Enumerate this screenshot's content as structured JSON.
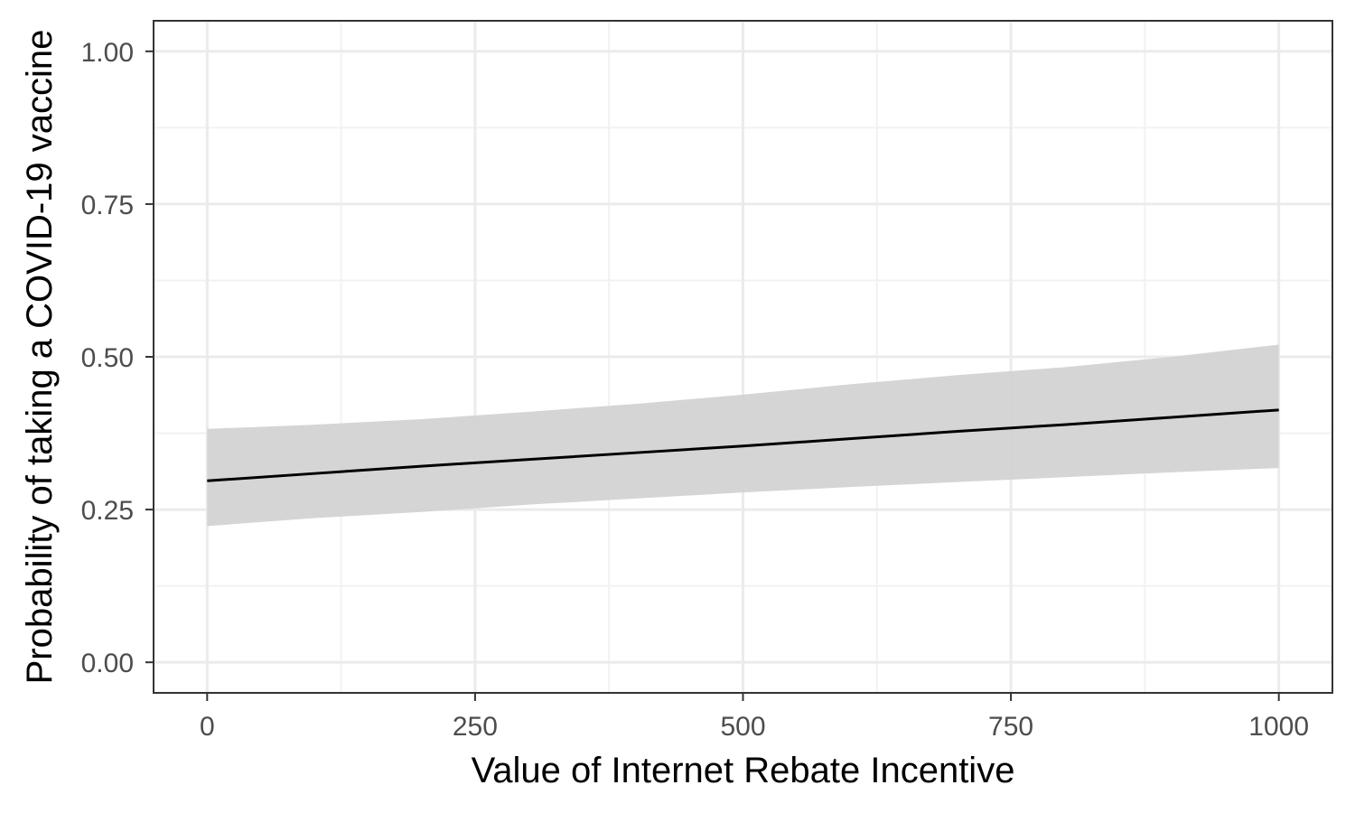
{
  "chart_data": {
    "type": "line",
    "title": "",
    "xlabel": "Value of Internet Rebate Incentive",
    "ylabel": "Probability of taking a COVID-19 vaccine",
    "xlim": [
      -50,
      1050
    ],
    "ylim": [
      -0.05,
      1.05
    ],
    "x_ticks": [
      0,
      250,
      500,
      750,
      1000
    ],
    "x_tick_labels": [
      "0",
      "250",
      "500",
      "750",
      "1000"
    ],
    "y_ticks": [
      0,
      0.25,
      0.5,
      0.75,
      1.0
    ],
    "y_tick_labels": [
      "0.00",
      "0.25",
      "0.50",
      "0.75",
      "1.00"
    ],
    "grid": true,
    "series": [
      {
        "x": [
          0,
          100,
          200,
          300,
          400,
          500,
          600,
          700,
          800,
          900,
          1000
        ],
        "fit": [
          0.297,
          0.309,
          0.321,
          0.332,
          0.343,
          0.354,
          0.366,
          0.378,
          0.389,
          0.401,
          0.413
        ],
        "lower": [
          0.223,
          0.236,
          0.246,
          0.258,
          0.268,
          0.278,
          0.287,
          0.295,
          0.303,
          0.311,
          0.318
        ],
        "upper": [
          0.382,
          0.389,
          0.398,
          0.41,
          0.423,
          0.438,
          0.455,
          0.47,
          0.483,
          0.5,
          0.52
        ]
      }
    ],
    "colors": {
      "line": "#000000",
      "ribbon": "#d3d3d3",
      "grid_major": "#ebebeb",
      "grid_minor": "#f2f2f2",
      "panel_border": "#333333",
      "tick_text": "#4d4d4d"
    }
  }
}
